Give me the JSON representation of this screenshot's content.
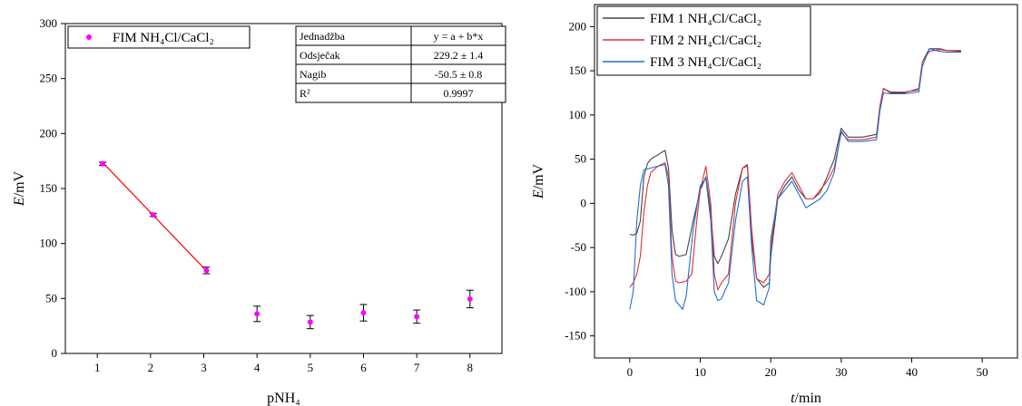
{
  "chart_data": [
    {
      "type": "scatter",
      "xlabel": "pNH₄",
      "ylabel": "E/mV",
      "xlim": [
        0.4,
        8.6
      ],
      "ylim": [
        0,
        300
      ],
      "xticks": [
        "1",
        "2",
        "3",
        "4",
        "5",
        "6",
        "7",
        "8"
      ],
      "yticks": [
        "0",
        "50",
        "100",
        "150",
        "200",
        "250",
        "300"
      ],
      "grid": false,
      "legend_position": "top-left",
      "colors": {
        "points": "#ff00ff",
        "fit_line": "#ff0000",
        "error_bars": "#000000"
      },
      "series": [
        {
          "name": "FIM NH₄Cl/CaCl₂",
          "points": [
            {
              "x": 1.1,
              "y": 172.5,
              "err": 1.5
            },
            {
              "x": 2.05,
              "y": 126,
              "err": 1.5
            },
            {
              "x": 3.05,
              "y": 75.5,
              "err": 3
            },
            {
              "x": 4.0,
              "y": 36,
              "err": 7
            },
            {
              "x": 5.0,
              "y": 28.5,
              "err": 6
            },
            {
              "x": 6.0,
              "y": 37,
              "err": 7.5
            },
            {
              "x": 7.0,
              "y": 33.5,
              "err": 6
            },
            {
              "x": 8.0,
              "y": 49.5,
              "err": 8
            }
          ]
        }
      ],
      "fit": {
        "x_start": 1.1,
        "x_end": 3.05,
        "intercept": 229.2,
        "slope": -50.5
      },
      "fit_table": [
        [
          "Jednadžba",
          "y = a + b*x"
        ],
        [
          "Odsječak",
          "229.2 ± 1.4"
        ],
        [
          "Nagib",
          "-50.5 ± 0.8"
        ],
        [
          "R²",
          "0.9997"
        ]
      ]
    },
    {
      "type": "line",
      "xlabel": "t/min",
      "ylabel": "E/mV",
      "xlim": [
        -5,
        55
      ],
      "ylim": [
        -175,
        225
      ],
      "xticks": [
        "0",
        "10",
        "20",
        "30",
        "40",
        "50"
      ],
      "yticks": [
        "-150",
        "-100",
        "-50",
        "0",
        "50",
        "100",
        "150",
        "200"
      ],
      "grid": false,
      "legend_position": "top-left",
      "series": [
        {
          "name": "FIM 1 NH₄Cl/CaCl₂",
          "color": "#444444",
          "points": [
            [
              0,
              -35
            ],
            [
              0.5,
              -36
            ],
            [
              1,
              -34
            ],
            [
              1.5,
              -20
            ],
            [
              2,
              30
            ],
            [
              2.5,
              45
            ],
            [
              3,
              50
            ],
            [
              4,
              55
            ],
            [
              5,
              60
            ],
            [
              5.5,
              40
            ],
            [
              6,
              -30
            ],
            [
              6.5,
              -58
            ],
            [
              7,
              -60
            ],
            [
              8,
              -58
            ],
            [
              9,
              -20
            ],
            [
              10,
              15
            ],
            [
              10.8,
              30
            ],
            [
              11.5,
              -10
            ],
            [
              12,
              -60
            ],
            [
              12.5,
              -68
            ],
            [
              13,
              -60
            ],
            [
              14,
              -40
            ],
            [
              15,
              10
            ],
            [
              16,
              40
            ],
            [
              16.7,
              42
            ],
            [
              17.3,
              -40
            ],
            [
              18,
              -85
            ],
            [
              19,
              -95
            ],
            [
              19.8,
              -90
            ],
            [
              20,
              -60
            ],
            [
              21,
              5
            ],
            [
              22,
              20
            ],
            [
              23,
              30
            ],
            [
              24,
              15
            ],
            [
              25,
              5
            ],
            [
              26,
              5
            ],
            [
              27,
              12
            ],
            [
              28,
              30
            ],
            [
              29,
              50
            ],
            [
              30,
              85
            ],
            [
              31,
              75
            ],
            [
              33,
              75
            ],
            [
              35,
              78
            ],
            [
              35.5,
              110
            ],
            [
              36,
              130
            ],
            [
              37,
              125
            ],
            [
              39,
              125
            ],
            [
              41,
              130
            ],
            [
              41.5,
              160
            ],
            [
              42.5,
              175
            ],
            [
              44,
              175
            ],
            [
              45,
              173
            ],
            [
              47,
              172
            ]
          ]
        },
        {
          "name": "FIM 2 NH₄Cl/CaCl₂",
          "color": "#e03030",
          "points": [
            [
              0,
              -95
            ],
            [
              0.5,
              -90
            ],
            [
              1,
              -80
            ],
            [
              1.5,
              -60
            ],
            [
              2,
              -10
            ],
            [
              2.5,
              20
            ],
            [
              3,
              35
            ],
            [
              4,
              42
            ],
            [
              5,
              46
            ],
            [
              5.5,
              30
            ],
            [
              6,
              -60
            ],
            [
              6.5,
              -88
            ],
            [
              7,
              -90
            ],
            [
              8,
              -88
            ],
            [
              8.8,
              -80
            ],
            [
              9.5,
              -20
            ],
            [
              10,
              15
            ],
            [
              10.8,
              42
            ],
            [
              11.5,
              0
            ],
            [
              12,
              -80
            ],
            [
              12.5,
              -98
            ],
            [
              13,
              -90
            ],
            [
              14,
              -80
            ],
            [
              15,
              0
            ],
            [
              16,
              40
            ],
            [
              16.7,
              44
            ],
            [
              17.3,
              -30
            ],
            [
              18,
              -85
            ],
            [
              19,
              -90
            ],
            [
              19.8,
              -80
            ],
            [
              20,
              -50
            ],
            [
              21,
              10
            ],
            [
              22,
              25
            ],
            [
              23,
              35
            ],
            [
              24,
              20
            ],
            [
              25,
              5
            ],
            [
              26,
              5
            ],
            [
              27,
              15
            ],
            [
              28,
              25
            ],
            [
              29,
              40
            ],
            [
              30,
              80
            ],
            [
              31,
              72
            ],
            [
              33,
              72
            ],
            [
              35,
              75
            ],
            [
              35.5,
              110
            ],
            [
              36,
              130
            ],
            [
              37,
              126
            ],
            [
              39,
              126
            ],
            [
              41,
              128
            ],
            [
              41.5,
              160
            ],
            [
              42.5,
              172
            ],
            [
              44,
              174
            ],
            [
              45,
              173
            ],
            [
              47,
              173
            ]
          ]
        },
        {
          "name": "FIM 3 NH₄Cl/CaCl₂",
          "color": "#1f6fd6",
          "points": [
            [
              0,
              -120
            ],
            [
              0.5,
              -100
            ],
            [
              1,
              -20
            ],
            [
              1.5,
              20
            ],
            [
              2,
              38
            ],
            [
              3,
              40
            ],
            [
              4,
              42
            ],
            [
              5,
              44
            ],
            [
              5.5,
              20
            ],
            [
              6,
              -80
            ],
            [
              6.5,
              -110
            ],
            [
              7,
              -115
            ],
            [
              7.5,
              -120
            ],
            [
              8,
              -105
            ],
            [
              9,
              -30
            ],
            [
              10,
              20
            ],
            [
              10.8,
              28
            ],
            [
              11.5,
              -20
            ],
            [
              12,
              -100
            ],
            [
              12.5,
              -110
            ],
            [
              13,
              -108
            ],
            [
              14,
              -90
            ],
            [
              15,
              -20
            ],
            [
              16,
              25
            ],
            [
              16.7,
              30
            ],
            [
              17.3,
              -50
            ],
            [
              18,
              -110
            ],
            [
              19,
              -115
            ],
            [
              19.8,
              -95
            ],
            [
              20,
              -40
            ],
            [
              21,
              5
            ],
            [
              22,
              15
            ],
            [
              23,
              25
            ],
            [
              24,
              10
            ],
            [
              25,
              -5
            ],
            [
              26,
              0
            ],
            [
              27,
              5
            ],
            [
              28,
              15
            ],
            [
              29,
              35
            ],
            [
              30,
              82
            ],
            [
              31,
              70
            ],
            [
              33,
              70
            ],
            [
              35,
              72
            ],
            [
              35.5,
              105
            ],
            [
              36,
              125
            ],
            [
              37,
              124
            ],
            [
              39,
              124
            ],
            [
              41,
              126
            ],
            [
              41.5,
              155
            ],
            [
              42.5,
              175
            ],
            [
              44,
              172
            ],
            [
              45,
              171
            ],
            [
              47,
              171
            ]
          ]
        }
      ]
    }
  ]
}
